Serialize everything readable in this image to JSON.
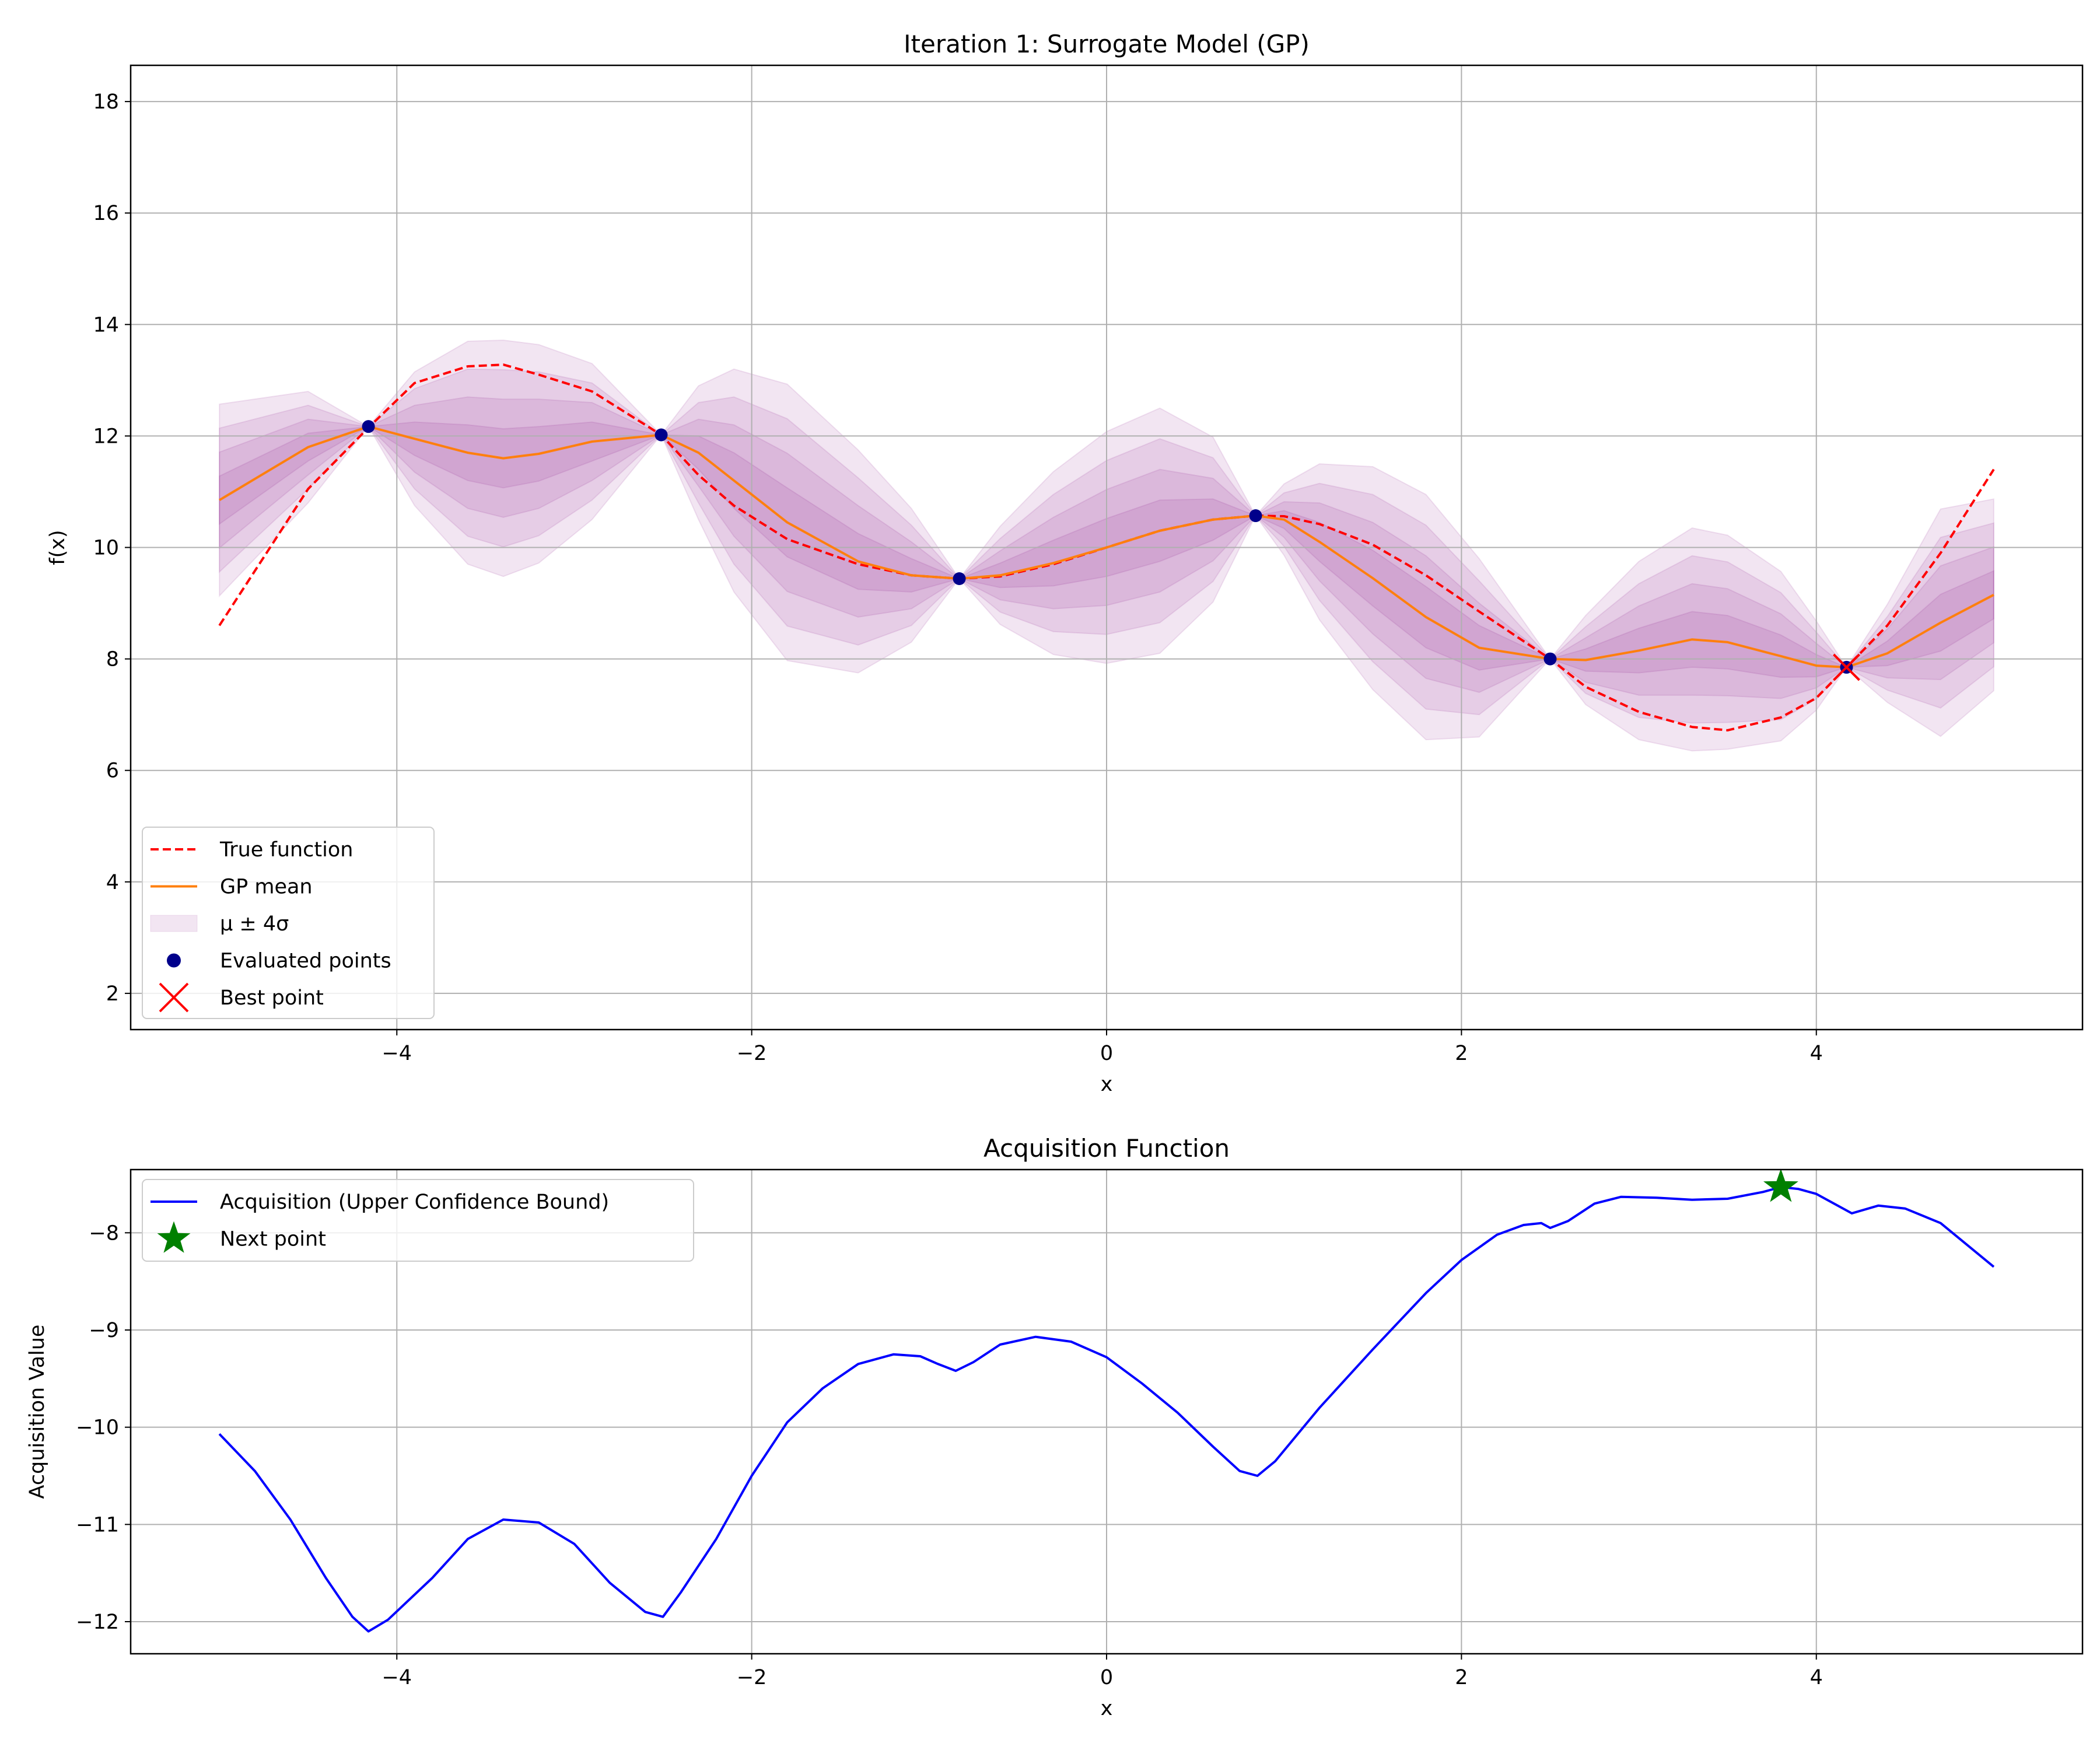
{
  "chart_data": [
    {
      "type": "line",
      "title": "Iteration 1: Surrogate Model (GP)",
      "xlabel": "x",
      "ylabel": "f(x)",
      "xlim": [
        -5.5,
        5.5
      ],
      "ylim": [
        1.35,
        18.65
      ],
      "xticks": [
        -4,
        -2,
        0,
        2,
        4
      ],
      "xtick_labels": [
        "−4",
        "−2",
        "0",
        "2",
        "4"
      ],
      "yticks": [
        2,
        4,
        6,
        8,
        10,
        12,
        14,
        16,
        18
      ],
      "ytick_labels": [
        "2",
        "4",
        "6",
        "8",
        "10",
        "12",
        "14",
        "16",
        "18"
      ],
      "grid": true,
      "legend_position": "lower-left",
      "x": [
        -5.0,
        -4.5,
        -4.16,
        -3.9,
        -3.6,
        -3.4,
        -3.2,
        -2.9,
        -2.51,
        -2.3,
        -2.1,
        -1.8,
        -1.4,
        -1.1,
        -0.83,
        -0.6,
        -0.3,
        0.0,
        0.3,
        0.6,
        0.84,
        1.0,
        1.2,
        1.5,
        1.8,
        2.1,
        2.5,
        2.7,
        3.0,
        3.3,
        3.5,
        3.8,
        4.0,
        4.17,
        4.4,
        4.7,
        5.0
      ],
      "series": [
        {
          "name": "True function",
          "color": "#ff0000",
          "style": "dashed",
          "values": [
            8.6,
            11.05,
            12.15,
            12.95,
            13.25,
            13.28,
            13.1,
            12.8,
            12.02,
            11.3,
            10.75,
            10.15,
            9.7,
            9.5,
            9.44,
            9.48,
            9.7,
            10.0,
            10.3,
            10.5,
            10.57,
            10.56,
            10.42,
            10.05,
            9.5,
            8.85,
            8.0,
            7.5,
            7.05,
            6.78,
            6.72,
            6.95,
            7.3,
            7.85,
            8.6,
            9.9,
            11.4
          ]
        },
        {
          "name": "GP mean",
          "color": "#ff7f0e",
          "style": "solid",
          "values": [
            10.85,
            11.8,
            12.17,
            11.95,
            11.7,
            11.6,
            11.68,
            11.9,
            12.02,
            11.7,
            11.2,
            10.45,
            9.75,
            9.5,
            9.44,
            9.5,
            9.72,
            10.0,
            10.3,
            10.5,
            10.57,
            10.5,
            10.1,
            9.45,
            8.75,
            8.2,
            8.0,
            7.98,
            8.15,
            8.35,
            8.3,
            8.05,
            7.88,
            7.85,
            8.1,
            8.65,
            9.15
          ]
        }
      ],
      "uncertainty": {
        "name": "μ ± 4σ",
        "color": "#800080",
        "sigma": [
          0.43,
          0.25,
          0.0,
          0.3,
          0.5,
          0.53,
          0.49,
          0.35,
          0.0,
          0.3,
          0.5,
          0.62,
          0.5,
          0.3,
          0.0,
          0.22,
          0.41,
          0.52,
          0.55,
          0.37,
          0.0,
          0.16,
          0.35,
          0.5,
          0.55,
          0.4,
          0.0,
          0.2,
          0.4,
          0.5,
          0.48,
          0.38,
          0.2,
          0.0,
          0.22,
          0.51,
          0.43
        ],
        "levels": [
          1,
          2,
          3,
          4
        ]
      },
      "evaluated_points": {
        "name": "Evaluated points",
        "color": "#00008b",
        "x": [
          -4.16,
          -2.51,
          -0.83,
          0.84,
          2.5,
          4.17
        ],
        "y": [
          12.17,
          12.02,
          9.44,
          10.57,
          8.0,
          7.85
        ]
      },
      "best_point": {
        "name": "Best point",
        "color": "#ff0000",
        "x": 4.17,
        "y": 7.85
      },
      "legend": [
        "True function",
        "GP mean",
        "μ ± 4σ",
        "Evaluated points",
        "Best point"
      ]
    },
    {
      "type": "line",
      "title": "Acquisition Function",
      "xlabel": "x",
      "ylabel": "Acquisition Value",
      "xlim": [
        -5.5,
        5.5
      ],
      "ylim": [
        -12.33,
        -7.35
      ],
      "xticks": [
        -4,
        -2,
        0,
        2,
        4
      ],
      "xtick_labels": [
        "−4",
        "−2",
        "0",
        "2",
        "4"
      ],
      "yticks": [
        -12,
        -11,
        -10,
        -9,
        -8
      ],
      "ytick_labels": [
        "−12",
        "−11",
        "−10",
        "−9",
        "−8"
      ],
      "grid": true,
      "legend_position": "upper-left",
      "x": [
        -5.0,
        -4.8,
        -4.6,
        -4.4,
        -4.25,
        -4.16,
        -4.05,
        -3.8,
        -3.6,
        -3.4,
        -3.2,
        -3.0,
        -2.8,
        -2.6,
        -2.5,
        -2.4,
        -2.2,
        -2.0,
        -1.8,
        -1.6,
        -1.4,
        -1.2,
        -1.05,
        -0.95,
        -0.85,
        -0.75,
        -0.6,
        -0.4,
        -0.2,
        0.0,
        0.2,
        0.4,
        0.6,
        0.75,
        0.85,
        0.95,
        1.2,
        1.5,
        1.8,
        2.0,
        2.2,
        2.35,
        2.45,
        2.5,
        2.6,
        2.75,
        2.9,
        3.1,
        3.3,
        3.5,
        3.7,
        3.8,
        3.9,
        4.0,
        4.2,
        4.35,
        4.5,
        4.7,
        5.0
      ],
      "series": [
        {
          "name": "Acquisition (Upper Confidence Bound)",
          "color": "#0000ff",
          "values": [
            -10.07,
            -10.45,
            -10.95,
            -11.55,
            -11.95,
            -12.1,
            -11.98,
            -11.55,
            -11.15,
            -10.95,
            -10.98,
            -11.2,
            -11.6,
            -11.9,
            -11.95,
            -11.7,
            -11.15,
            -10.5,
            -9.95,
            -9.6,
            -9.35,
            -9.25,
            -9.27,
            -9.35,
            -9.42,
            -9.33,
            -9.15,
            -9.07,
            -9.12,
            -9.28,
            -9.55,
            -9.85,
            -10.2,
            -10.45,
            -10.5,
            -10.35,
            -9.8,
            -9.2,
            -8.62,
            -8.28,
            -8.02,
            -7.92,
            -7.9,
            -7.95,
            -7.88,
            -7.7,
            -7.63,
            -7.64,
            -7.66,
            -7.65,
            -7.58,
            -7.53,
            -7.55,
            -7.6,
            -7.8,
            -7.72,
            -7.75,
            -7.9,
            -8.35
          ]
        }
      ],
      "next_point": {
        "name": "Next point",
        "color": "#008000",
        "x": 3.8,
        "y": -7.53
      },
      "legend": [
        "Acquisition (Upper Confidence Bound)",
        "Next point"
      ]
    }
  ]
}
